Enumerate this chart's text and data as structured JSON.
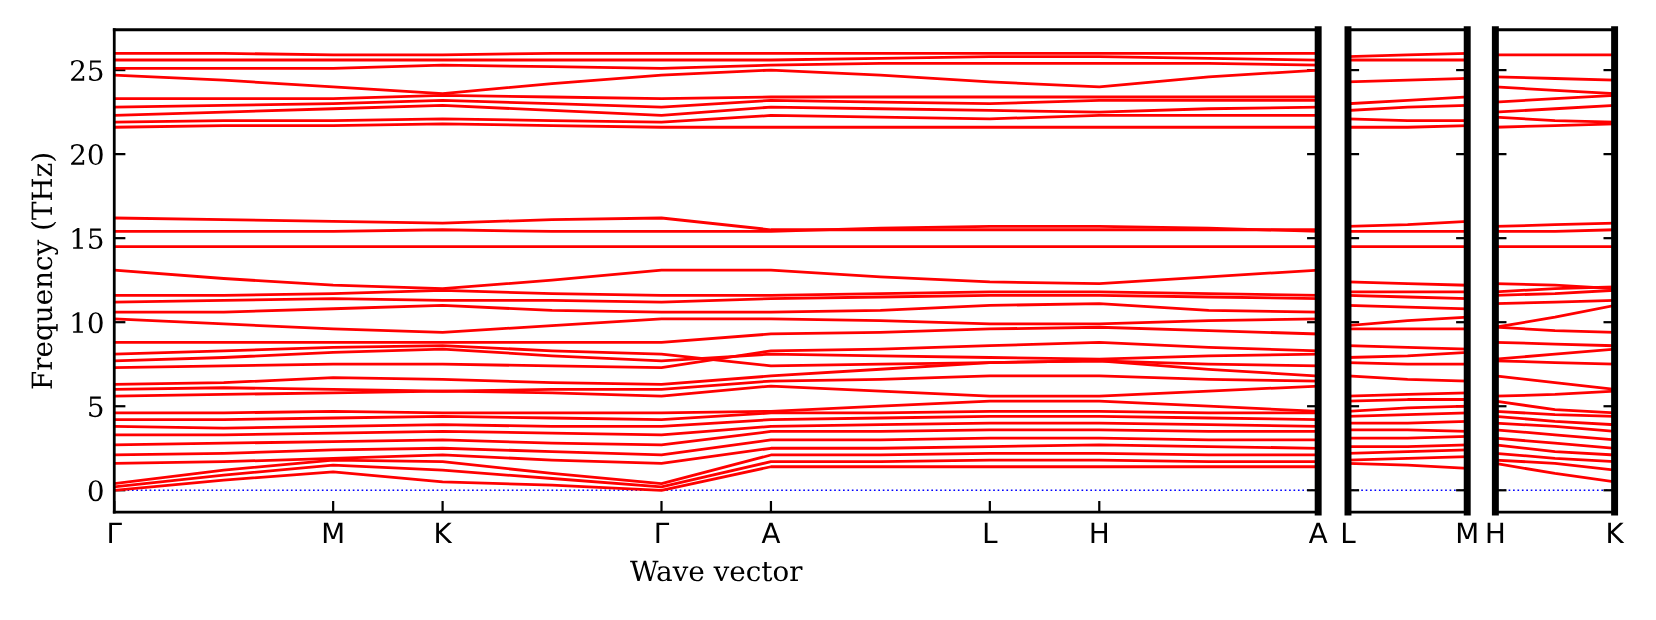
{
  "chart_data": [
    {
      "type": "line",
      "xlabel": "Wave vector",
      "ylabel": "Frequency (THz)",
      "categories": [
        "Γ",
        null,
        "M",
        "K",
        null,
        "Γ",
        "A",
        null,
        "L",
        "H",
        null,
        "A"
      ],
      "ylim": [
        -1.3,
        27.4
      ],
      "yticks": [
        0,
        5,
        10,
        15,
        20,
        25
      ],
      "ref_lines": [
        {
          "axis": "y",
          "value": 0,
          "color": "#0000ff",
          "line_style": "dotted"
        }
      ],
      "series": [
        {
          "color": "#ff0000",
          "values": [
            0,
            0.6,
            1.1,
            0.5,
            0.3,
            0,
            1.4,
            1.4,
            1.4,
            1.4,
            1.4,
            1.4
          ]
        },
        {
          "color": "#ff0000",
          "values": [
            0.2,
            0.9,
            1.5,
            1.2,
            0.7,
            0.2,
            1.7,
            1.7,
            1.8,
            1.8,
            1.7,
            1.7
          ]
        },
        {
          "color": "#ff0000",
          "values": [
            0.4,
            1.2,
            1.8,
            1.7,
            1.0,
            0.4,
            2.1,
            2.1,
            2.2,
            2.2,
            2.1,
            2.1
          ]
        },
        {
          "color": "#ff0000",
          "values": [
            1.6,
            1.7,
            1.9,
            2.1,
            1.8,
            1.6,
            2.5,
            2.5,
            2.6,
            2.7,
            2.6,
            2.5
          ]
        },
        {
          "color": "#ff0000",
          "values": [
            2.1,
            2.2,
            2.4,
            2.5,
            2.3,
            2.1,
            3.0,
            3.0,
            3.1,
            3.1,
            3.0,
            3.0
          ]
        },
        {
          "color": "#ff0000",
          "values": [
            2.7,
            2.8,
            2.9,
            3.0,
            2.8,
            2.7,
            3.5,
            3.5,
            3.6,
            3.6,
            3.5,
            3.5
          ]
        },
        {
          "color": "#ff0000",
          "values": [
            3.3,
            3.3,
            3.4,
            3.5,
            3.4,
            3.3,
            3.8,
            3.9,
            4.0,
            4.0,
            3.9,
            3.8
          ]
        },
        {
          "color": "#ff0000",
          "values": [
            3.8,
            3.7,
            3.8,
            3.9,
            3.8,
            3.8,
            4.2,
            4.3,
            4.4,
            4.4,
            4.3,
            4.2
          ]
        },
        {
          "color": "#ff0000",
          "values": [
            4.2,
            4.2,
            4.3,
            4.4,
            4.3,
            4.2,
            4.6,
            4.6,
            4.7,
            4.7,
            4.6,
            4.6
          ]
        },
        {
          "color": "#ff0000",
          "values": [
            4.6,
            4.6,
            4.7,
            4.6,
            4.6,
            4.6,
            4.7,
            5.0,
            5.3,
            5.3,
            5.0,
            4.7
          ]
        },
        {
          "color": "#ff0000",
          "values": [
            5.6,
            5.7,
            5.8,
            5.9,
            5.8,
            5.6,
            6.2,
            5.9,
            5.6,
            5.6,
            5.9,
            6.2
          ]
        },
        {
          "color": "#ff0000",
          "values": [
            6.0,
            6.1,
            6.0,
            5.9,
            6.0,
            6.0,
            6.5,
            6.6,
            6.8,
            6.8,
            6.6,
            6.5
          ]
        },
        {
          "color": "#ff0000",
          "values": [
            6.3,
            6.4,
            6.7,
            6.6,
            6.4,
            6.3,
            6.8,
            7.2,
            7.6,
            7.7,
            7.2,
            6.8
          ]
        },
        {
          "color": "#ff0000",
          "values": [
            7.3,
            7.4,
            7.5,
            7.5,
            7.4,
            7.3,
            8.3,
            8.4,
            8.6,
            8.8,
            8.5,
            8.3
          ]
        },
        {
          "color": "#ff0000",
          "values": [
            7.7,
            7.9,
            8.2,
            8.4,
            8.0,
            7.7,
            8.1,
            8.0,
            7.9,
            7.8,
            8.0,
            8.1
          ]
        },
        {
          "color": "#ff0000",
          "values": [
            8.1,
            8.3,
            8.5,
            8.6,
            8.3,
            8.1,
            7.4,
            7.5,
            7.6,
            7.7,
            7.5,
            7.4
          ]
        },
        {
          "color": "#ff0000",
          "values": [
            8.8,
            8.8,
            8.8,
            8.8,
            8.8,
            8.8,
            9.3,
            9.4,
            9.6,
            9.7,
            9.5,
            9.3
          ]
        },
        {
          "color": "#ff0000",
          "values": [
            10.2,
            9.9,
            9.6,
            9.4,
            9.8,
            10.2,
            10.2,
            10.1,
            9.9,
            9.9,
            10.1,
            10.2
          ]
        },
        {
          "color": "#ff0000",
          "values": [
            10.6,
            10.6,
            10.8,
            11.0,
            10.7,
            10.6,
            10.6,
            10.7,
            11.0,
            11.1,
            10.7,
            10.6
          ]
        },
        {
          "color": "#ff0000",
          "values": [
            11.2,
            11.3,
            11.4,
            11.3,
            11.3,
            11.2,
            11.4,
            11.5,
            11.6,
            11.6,
            11.5,
            11.4
          ]
        },
        {
          "color": "#ff0000",
          "values": [
            11.6,
            11.6,
            11.7,
            11.9,
            11.7,
            11.6,
            11.6,
            11.7,
            11.8,
            11.8,
            11.7,
            11.6
          ]
        },
        {
          "color": "#ff0000",
          "values": [
            13.1,
            12.6,
            12.2,
            12.0,
            12.5,
            13.1,
            13.1,
            12.7,
            12.4,
            12.3,
            12.7,
            13.1
          ]
        },
        {
          "color": "#ff0000",
          "values": [
            14.5,
            14.5,
            14.5,
            14.5,
            14.5,
            14.5,
            14.5,
            14.5,
            14.5,
            14.5,
            14.5,
            14.5
          ]
        },
        {
          "color": "#ff0000",
          "values": [
            15.4,
            15.4,
            15.4,
            15.5,
            15.4,
            15.4,
            15.4,
            15.6,
            15.7,
            15.7,
            15.6,
            15.4
          ]
        },
        {
          "color": "#ff0000",
          "values": [
            16.2,
            16.1,
            16.0,
            15.9,
            16.1,
            16.2,
            15.5,
            15.5,
            15.5,
            15.5,
            15.5,
            15.5
          ]
        },
        {
          "color": "#ff0000",
          "values": [
            21.6,
            21.7,
            21.7,
            21.8,
            21.7,
            21.6,
            21.6,
            21.6,
            21.6,
            21.6,
            21.6,
            21.6
          ]
        },
        {
          "color": "#ff0000",
          "values": [
            21.9,
            22.0,
            22.0,
            22.1,
            22.0,
            21.9,
            22.3,
            22.2,
            22.1,
            22.3,
            22.3,
            22.3
          ]
        },
        {
          "color": "#ff0000",
          "values": [
            22.3,
            22.5,
            22.7,
            22.9,
            22.6,
            22.3,
            22.8,
            22.7,
            22.6,
            22.5,
            22.7,
            22.8
          ]
        },
        {
          "color": "#ff0000",
          "values": [
            22.8,
            22.9,
            23.0,
            23.2,
            23.0,
            22.8,
            23.2,
            23.1,
            23.0,
            23.2,
            23.2,
            23.2
          ]
        },
        {
          "color": "#ff0000",
          "values": [
            23.3,
            23.3,
            23.3,
            23.5,
            23.4,
            23.3,
            23.4,
            23.4,
            23.4,
            23.4,
            23.4,
            23.4
          ]
        },
        {
          "color": "#ff0000",
          "values": [
            24.7,
            24.4,
            24.0,
            23.6,
            24.2,
            24.7,
            25.0,
            24.7,
            24.3,
            24.0,
            24.6,
            25.0
          ]
        },
        {
          "color": "#ff0000",
          "values": [
            25.1,
            25.1,
            25.1,
            25.3,
            25.2,
            25.1,
            25.3,
            25.4,
            25.4,
            25.4,
            25.4,
            25.3
          ]
        },
        {
          "color": "#ff0000",
          "values": [
            25.6,
            25.6,
            25.6,
            25.6,
            25.6,
            25.6,
            25.6,
            25.7,
            25.8,
            25.8,
            25.7,
            25.6
          ]
        },
        {
          "color": "#ff0000",
          "values": [
            26.0,
            26.0,
            25.9,
            25.9,
            26.0,
            26.0,
            26.0,
            26.0,
            26.0,
            26.0,
            26.0,
            26.0
          ]
        }
      ]
    },
    {
      "type": "line",
      "categories": [
        "L",
        null,
        "M"
      ],
      "ylim": [
        -1.3,
        27.4
      ],
      "tick_labels": "x",
      "ref_lines": [
        {
          "axis": "y",
          "value": 0,
          "color": "#0000ff",
          "line_style": "dotted"
        }
      ],
      "series": [
        {
          "color": "#ff0000",
          "values": [
            1.6,
            1.5,
            1.3
          ]
        },
        {
          "color": "#ff0000",
          "values": [
            1.8,
            1.9,
            2.0
          ]
        },
        {
          "color": "#ff0000",
          "values": [
            2.2,
            2.3,
            2.4
          ]
        },
        {
          "color": "#ff0000",
          "values": [
            2.6,
            2.6,
            2.7
          ]
        },
        {
          "color": "#ff0000",
          "values": [
            3.1,
            3.1,
            3.2
          ]
        },
        {
          "color": "#ff0000",
          "values": [
            3.6,
            3.6,
            3.5
          ]
        },
        {
          "color": "#ff0000",
          "values": [
            4.0,
            4.0,
            4.1
          ]
        },
        {
          "color": "#ff0000",
          "values": [
            4.4,
            4.5,
            4.6
          ]
        },
        {
          "color": "#ff0000",
          "values": [
            4.7,
            4.9,
            5.0
          ]
        },
        {
          "color": "#ff0000",
          "values": [
            5.3,
            5.4,
            5.4
          ]
        },
        {
          "color": "#ff0000",
          "values": [
            5.6,
            5.7,
            5.8
          ]
        },
        {
          "color": "#ff0000",
          "values": [
            6.8,
            6.6,
            6.5
          ]
        },
        {
          "color": "#ff0000",
          "values": [
            7.6,
            7.5,
            7.5
          ]
        },
        {
          "color": "#ff0000",
          "values": [
            7.9,
            8.0,
            8.2
          ]
        },
        {
          "color": "#ff0000",
          "values": [
            8.6,
            8.5,
            8.4
          ]
        },
        {
          "color": "#ff0000",
          "values": [
            9.6,
            9.6,
            9.6
          ]
        },
        {
          "color": "#ff0000",
          "values": [
            9.8,
            10.1,
            10.3
          ]
        },
        {
          "color": "#ff0000",
          "values": [
            11.0,
            10.9,
            10.8
          ]
        },
        {
          "color": "#ff0000",
          "values": [
            11.6,
            11.5,
            11.4
          ]
        },
        {
          "color": "#ff0000",
          "values": [
            11.8,
            11.8,
            11.8
          ]
        },
        {
          "color": "#ff0000",
          "values": [
            12.4,
            12.3,
            12.2
          ]
        },
        {
          "color": "#ff0000",
          "values": [
            14.5,
            14.5,
            14.5
          ]
        },
        {
          "color": "#ff0000",
          "values": [
            15.7,
            15.8,
            16.0
          ]
        },
        {
          "color": "#ff0000",
          "values": [
            15.4,
            15.4,
            15.4
          ]
        },
        {
          "color": "#ff0000",
          "values": [
            21.6,
            21.6,
            21.7
          ]
        },
        {
          "color": "#ff0000",
          "values": [
            22.1,
            22.0,
            22.0
          ]
        },
        {
          "color": "#ff0000",
          "values": [
            22.6,
            22.8,
            22.9
          ]
        },
        {
          "color": "#ff0000",
          "values": [
            23.0,
            23.2,
            23.4
          ]
        },
        {
          "color": "#ff0000",
          "values": [
            24.3,
            24.4,
            24.5
          ]
        },
        {
          "color": "#ff0000",
          "values": [
            25.8,
            25.9,
            26.0
          ]
        },
        {
          "color": "#ff0000",
          "values": [
            25.6,
            25.6,
            25.6
          ]
        }
      ]
    },
    {
      "type": "line",
      "categories": [
        "H",
        null,
        "K"
      ],
      "ylim": [
        -1.3,
        27.4
      ],
      "tick_labels": "x",
      "ref_lines": [
        {
          "axis": "y",
          "value": 0,
          "color": "#0000ff",
          "line_style": "dotted"
        }
      ],
      "series": [
        {
          "color": "#ff0000",
          "values": [
            1.6,
            1.0,
            0.5
          ]
        },
        {
          "color": "#ff0000",
          "values": [
            1.8,
            1.6,
            1.2
          ]
        },
        {
          "color": "#ff0000",
          "values": [
            2.2,
            1.9,
            1.7
          ]
        },
        {
          "color": "#ff0000",
          "values": [
            2.7,
            2.3,
            2.1
          ]
        },
        {
          "color": "#ff0000",
          "values": [
            3.1,
            2.8,
            2.5
          ]
        },
        {
          "color": "#ff0000",
          "values": [
            3.6,
            3.3,
            3.0
          ]
        },
        {
          "color": "#ff0000",
          "values": [
            4.0,
            3.8,
            3.5
          ]
        },
        {
          "color": "#ff0000",
          "values": [
            4.4,
            4.1,
            3.9
          ]
        },
        {
          "color": "#ff0000",
          "values": [
            4.7,
            4.5,
            4.4
          ]
        },
        {
          "color": "#ff0000",
          "values": [
            5.3,
            4.8,
            4.6
          ]
        },
        {
          "color": "#ff0000",
          "values": [
            5.6,
            5.7,
            5.9
          ]
        },
        {
          "color": "#ff0000",
          "values": [
            6.8,
            6.4,
            6.0
          ]
        },
        {
          "color": "#ff0000",
          "values": [
            7.7,
            7.6,
            7.5
          ]
        },
        {
          "color": "#ff0000",
          "values": [
            7.8,
            8.1,
            8.4
          ]
        },
        {
          "color": "#ff0000",
          "values": [
            8.8,
            8.7,
            8.6
          ]
        },
        {
          "color": "#ff0000",
          "values": [
            9.7,
            9.5,
            9.4
          ]
        },
        {
          "color": "#ff0000",
          "values": [
            9.7,
            10.3,
            11.0
          ]
        },
        {
          "color": "#ff0000",
          "values": [
            11.1,
            11.2,
            11.3
          ]
        },
        {
          "color": "#ff0000",
          "values": [
            11.6,
            11.7,
            11.9
          ]
        },
        {
          "color": "#ff0000",
          "values": [
            11.8,
            12.0,
            12.1
          ]
        },
        {
          "color": "#ff0000",
          "values": [
            12.3,
            12.2,
            12.0
          ]
        },
        {
          "color": "#ff0000",
          "values": [
            14.5,
            14.5,
            14.5
          ]
        },
        {
          "color": "#ff0000",
          "values": [
            15.7,
            15.8,
            15.9
          ]
        },
        {
          "color": "#ff0000",
          "values": [
            15.4,
            15.4,
            15.5
          ]
        },
        {
          "color": "#ff0000",
          "values": [
            21.6,
            21.7,
            21.8
          ]
        },
        {
          "color": "#ff0000",
          "values": [
            22.2,
            22.0,
            21.9
          ]
        },
        {
          "color": "#ff0000",
          "values": [
            22.5,
            22.7,
            22.9
          ]
        },
        {
          "color": "#ff0000",
          "values": [
            23.1,
            23.3,
            23.5
          ]
        },
        {
          "color": "#ff0000",
          "values": [
            24.0,
            23.8,
            23.6
          ]
        },
        {
          "color": "#ff0000",
          "values": [
            24.6,
            24.5,
            24.4
          ]
        },
        {
          "color": "#ff0000",
          "values": [
            25.9,
            25.9,
            25.9
          ]
        }
      ]
    }
  ]
}
